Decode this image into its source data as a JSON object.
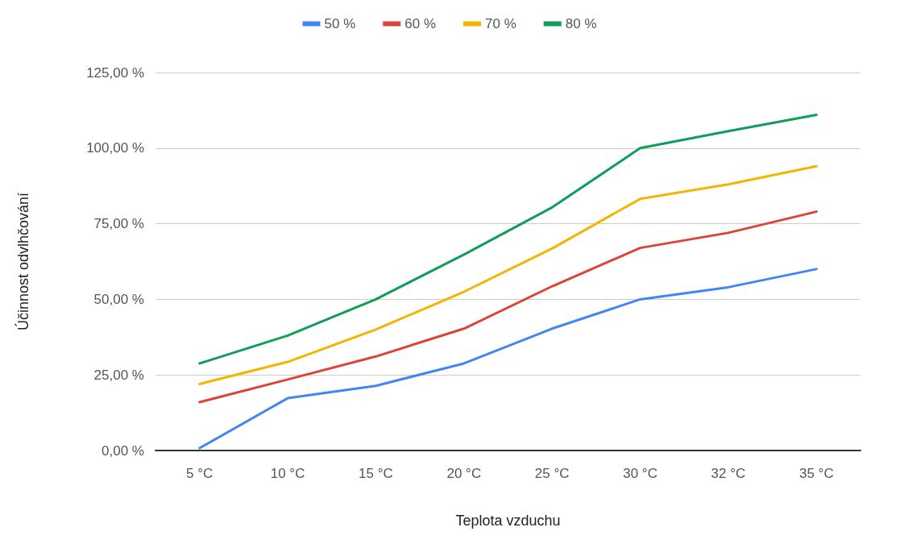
{
  "chart_data": {
    "type": "line",
    "xlabel": "Teplota vzduchu",
    "ylabel": "Účinnost odvlhčování",
    "categories": [
      "5 °C",
      "10 °C",
      "15 °C",
      "20 °C",
      "25 °C",
      "30 °C",
      "32 °C",
      "35 °C"
    ],
    "series": [
      {
        "name": "50 %",
        "color": "#4285f4",
        "values": [
          0.8,
          17.3,
          21.4,
          28.8,
          40.3,
          50,
          54,
          60
        ]
      },
      {
        "name": "60 %",
        "color": "#db4437",
        "values": [
          16,
          23.5,
          31.1,
          40.3,
          54.3,
          67,
          72,
          79
        ]
      },
      {
        "name": "70 %",
        "color": "#f4b400",
        "values": [
          22,
          29.3,
          40,
          52.5,
          66.8,
          83.2,
          88,
          94
        ]
      },
      {
        "name": "80 %",
        "color": "#0f9d58",
        "values": [
          28.8,
          38,
          50,
          64.8,
          80.4,
          100,
          105.6,
          111
        ]
      }
    ],
    "ylim": [
      0,
      125
    ],
    "yticks": [
      {
        "value": 0,
        "label": "0,00 %"
      },
      {
        "value": 25,
        "label": "25,00 %"
      },
      {
        "value": 50,
        "label": "50,00 %"
      },
      {
        "value": 75,
        "label": "75,00 %"
      },
      {
        "value": 100,
        "label": "100,00 %"
      },
      {
        "value": 125,
        "label": "125,00 %"
      }
    ],
    "grid": "y",
    "legend": "top",
    "marker": "none",
    "line_style": "solid"
  }
}
